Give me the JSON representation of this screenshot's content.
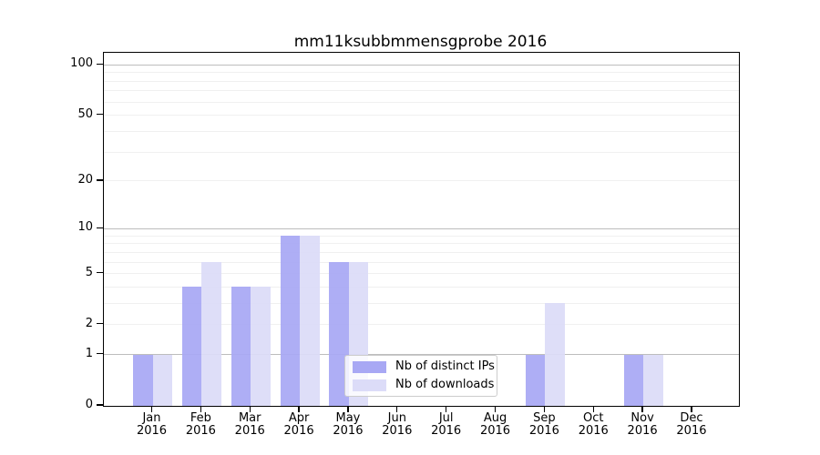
{
  "title": "mm11ksubbmmensgprobe 2016",
  "chart_data": {
    "type": "bar",
    "title": "mm11ksubbmmensgprobe 2016",
    "categories": [
      "Jan",
      "Feb",
      "Mar",
      "Apr",
      "May",
      "Jun",
      "Jul",
      "Aug",
      "Sep",
      "Oct",
      "Nov",
      "Dec"
    ],
    "year_label": "2016",
    "series": [
      {
        "name": "Nb of distinct IPs",
        "color": "#a8a8f4",
        "values": [
          1,
          4,
          4,
          9,
          6,
          0,
          0,
          0,
          1,
          0,
          1,
          0
        ]
      },
      {
        "name": "Nb of downloads",
        "color": "#dcdcf8",
        "values": [
          1,
          6,
          4,
          9,
          6,
          0,
          0,
          0,
          3,
          0,
          1,
          0
        ]
      }
    ],
    "y_axis": {
      "scale": "log10(value+1)",
      "ticks": [
        0,
        1,
        2,
        5,
        10,
        20,
        50,
        100
      ],
      "ymin": 0,
      "ymax": 118,
      "major_gridlines": [
        1,
        10,
        100
      ],
      "minor_gridlines": [
        2,
        3,
        4,
        5,
        6,
        7,
        8,
        9,
        20,
        30,
        40,
        50,
        60,
        70,
        80,
        90
      ]
    },
    "legend": {
      "position": "lower-center",
      "items": [
        "Nb of distinct IPs",
        "Nb of downloads"
      ]
    },
    "colors": {
      "bar_distinct_ips": "#a8a8f4",
      "bar_downloads": "#dcdcf8",
      "major_gridline": "#bdbdbd",
      "minor_gridline": "#f0f0f0",
      "axis": "#000000",
      "legend_border": "#cccccc"
    },
    "grid": true
  }
}
